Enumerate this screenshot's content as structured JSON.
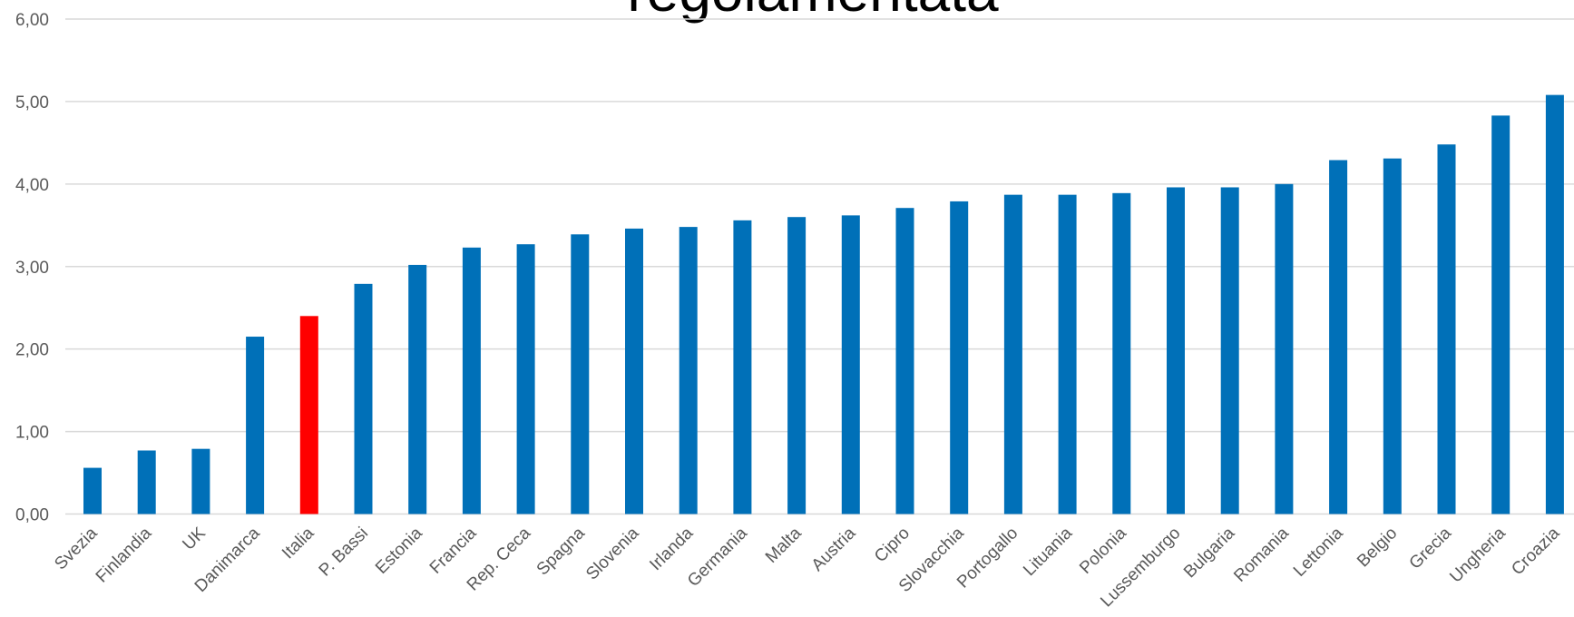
{
  "chart_data": {
    "type": "bar",
    "title": "regolamentata",
    "categories": [
      "Svezia",
      "Finlandia",
      "UK",
      "Danimarca",
      "Italia",
      "P. Bassi",
      "Estonia",
      "Francia",
      "Rep. Ceca",
      "Spagna",
      "Slovenia",
      "Irlanda",
      "Germania",
      "Malta",
      "Austria",
      "Cipro",
      "Slovacchia",
      "Portogallo",
      "Lituania",
      "Polonia",
      "Lussemburgo",
      "Bulgaria",
      "Romania",
      "Lettonia",
      "Belgio",
      "Grecia",
      "Ungheria",
      "Croazia"
    ],
    "values": [
      0.56,
      0.77,
      0.79,
      2.15,
      2.4,
      2.79,
      3.02,
      3.23,
      3.27,
      3.39,
      3.46,
      3.48,
      3.56,
      3.6,
      3.62,
      3.71,
      3.79,
      3.87,
      3.87,
      3.89,
      3.96,
      3.96,
      4.0,
      4.29,
      4.31,
      4.48,
      4.83,
      5.08
    ],
    "colors": [
      "#0070b8",
      "#0070b8",
      "#0070b8",
      "#0070b8",
      "#ff0000",
      "#0070b8",
      "#0070b8",
      "#0070b8",
      "#0070b8",
      "#0070b8",
      "#0070b8",
      "#0070b8",
      "#0070b8",
      "#0070b8",
      "#0070b8",
      "#0070b8",
      "#0070b8",
      "#0070b8",
      "#0070b8",
      "#0070b8",
      "#0070b8",
      "#0070b8",
      "#0070b8",
      "#0070b8",
      "#0070b8",
      "#0070b8",
      "#0070b8",
      "#0070b8"
    ],
    "ylim": [
      0,
      6
    ],
    "yticks": [
      {
        "value": 0,
        "label": "0,00"
      },
      {
        "value": 1,
        "label": "1,00"
      },
      {
        "value": 2,
        "label": "2,00"
      },
      {
        "value": 3,
        "label": "3,00"
      },
      {
        "value": 4,
        "label": "4,00"
      },
      {
        "value": 5,
        "label": "5,00"
      },
      {
        "value": 6,
        "label": "6,00"
      }
    ],
    "grid": true
  }
}
